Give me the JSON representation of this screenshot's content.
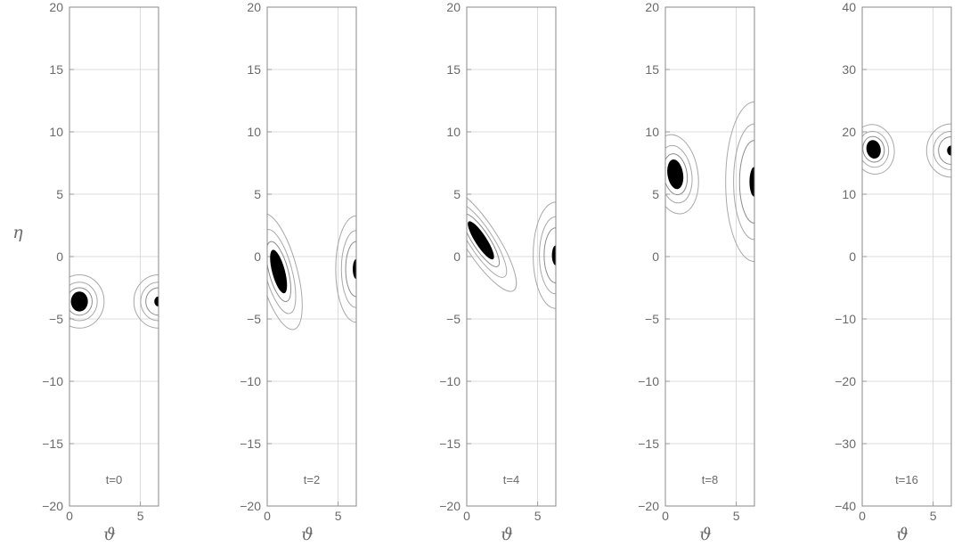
{
  "chart_data": [
    {
      "type": "contour",
      "panel_label": "t=0",
      "xlabel": "ϑ",
      "ylabel": "η",
      "xlim": [
        0,
        6.28
      ],
      "ylim": [
        -20,
        20
      ],
      "xticks": [
        "0",
        "5"
      ],
      "yticks": [
        "−20",
        "−15",
        "−10",
        "−5",
        "0",
        "5",
        "10",
        "15",
        "20"
      ],
      "grid": true,
      "features": [
        {
          "kind": "blob",
          "x": 0.7,
          "y": -3.6,
          "tilt": 0,
          "rx": 0.6,
          "ry": 0.8
        },
        {
          "kind": "wrap-blob",
          "x": 6.28,
          "y": -3.6,
          "tilt": 0,
          "rx": 0.6,
          "ry": 0.8
        }
      ]
    },
    {
      "type": "contour",
      "panel_label": "t=2",
      "xlabel": "ϑ",
      "ylabel": "",
      "xlim": [
        0,
        6.28
      ],
      "ylim": [
        -20,
        20
      ],
      "xticks": [
        "0",
        "5"
      ],
      "yticks": [
        "−20",
        "−15",
        "−10",
        "−5",
        "0",
        "5",
        "10",
        "15",
        "20"
      ],
      "grid": true,
      "features": [
        {
          "kind": "blob",
          "x": 0.8,
          "y": -1.2,
          "tilt": 0.25,
          "rx": 0.45,
          "ry": 1.8
        },
        {
          "kind": "wrap-blob",
          "x": 6.28,
          "y": -1.0,
          "tilt": 0,
          "rx": 0.5,
          "ry": 1.6
        }
      ]
    },
    {
      "type": "contour",
      "panel_label": "t=4",
      "xlabel": "ϑ",
      "ylabel": "",
      "xlim": [
        0,
        6.28
      ],
      "ylim": [
        -20,
        20
      ],
      "xticks": [
        "0",
        "5"
      ],
      "yticks": [
        "−20",
        "−15",
        "−10",
        "−5",
        "0",
        "5",
        "10",
        "15",
        "20"
      ],
      "grid": true,
      "features": [
        {
          "kind": "blob",
          "x": 1.0,
          "y": 1.3,
          "tilt": 0.55,
          "rx": 0.4,
          "ry": 1.8
        },
        {
          "kind": "wrap-blob",
          "x": 6.28,
          "y": 0.1,
          "tilt": 0,
          "rx": 0.55,
          "ry": 1.6
        }
      ]
    },
    {
      "type": "contour",
      "panel_label": "t=8",
      "xlabel": "ϑ",
      "ylabel": "",
      "xlim": [
        0,
        6.28
      ],
      "ylim": [
        -20,
        20
      ],
      "xticks": [
        "0",
        "5"
      ],
      "yticks": [
        "−20",
        "−15",
        "−10",
        "−5",
        "0",
        "5",
        "10",
        "15",
        "20"
      ],
      "grid": true,
      "features": [
        {
          "kind": "blob",
          "x": 0.7,
          "y": 6.6,
          "tilt": 0.15,
          "rx": 0.55,
          "ry": 1.2
        },
        {
          "kind": "wrap-blob",
          "x": 6.28,
          "y": 6.0,
          "tilt": 0,
          "rx": 0.7,
          "ry": 2.4
        }
      ]
    },
    {
      "type": "contour",
      "panel_label": "t=16",
      "xlabel": "ϑ",
      "ylabel": "",
      "xlim": [
        0,
        6.28
      ],
      "ylim": [
        -40,
        40
      ],
      "xticks": [
        "0",
        "5"
      ],
      "yticks": [
        "−40",
        "−30",
        "−20",
        "−10",
        "0",
        "10",
        "20",
        "30",
        "40"
      ],
      "grid": true,
      "features": [
        {
          "kind": "blob",
          "x": 0.8,
          "y": 17.2,
          "tilt": 0.2,
          "rx": 0.5,
          "ry": 1.5
        },
        {
          "kind": "wrap-blob",
          "x": 6.28,
          "y": 17.0,
          "tilt": 0,
          "rx": 0.6,
          "ry": 1.6
        }
      ]
    }
  ]
}
